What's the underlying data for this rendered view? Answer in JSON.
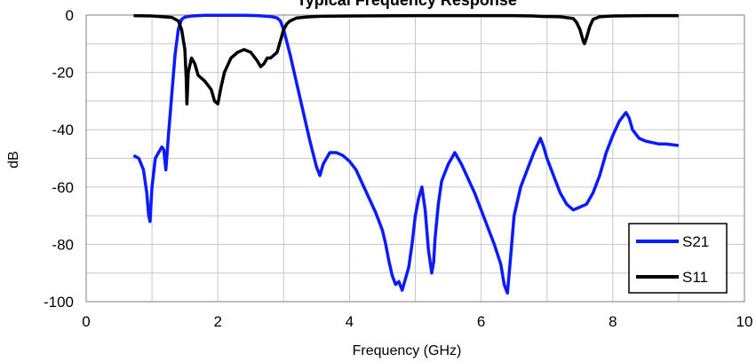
{
  "chart_data": {
    "type": "line",
    "title": "Typical Frequency Response",
    "xlabel": "Frequency (GHz)",
    "ylabel": "dB",
    "xlim": [
      0,
      10
    ],
    "ylim": [
      -100,
      0
    ],
    "x_ticks": [
      "0",
      "2",
      "4",
      "6",
      "8",
      "10"
    ],
    "y_ticks": [
      "0",
      "-20",
      "-40",
      "-60",
      "-80",
      "-100"
    ],
    "grid": true,
    "legend_position": "bottom-right",
    "series": [
      {
        "name": "S21",
        "color": "#0a1cff",
        "x": [
          0.72,
          0.8,
          0.87,
          0.92,
          0.95,
          0.97,
          1.0,
          1.05,
          1.1,
          1.15,
          1.18,
          1.21,
          1.25,
          1.3,
          1.35,
          1.4,
          1.45,
          1.5,
          1.55,
          1.6,
          1.7,
          1.8,
          2.0,
          2.2,
          2.4,
          2.6,
          2.8,
          2.9,
          2.95,
          3.0,
          3.1,
          3.2,
          3.3,
          3.4,
          3.5,
          3.55,
          3.6,
          3.7,
          3.8,
          3.9,
          4.0,
          4.1,
          4.2,
          4.3,
          4.4,
          4.5,
          4.55,
          4.6,
          4.65,
          4.7,
          4.75,
          4.8,
          4.85,
          4.9,
          4.95,
          5.0,
          5.05,
          5.1,
          5.15,
          5.2,
          5.25,
          5.28,
          5.3,
          5.35,
          5.4,
          5.5,
          5.6,
          5.7,
          5.8,
          5.9,
          6.0,
          6.1,
          6.2,
          6.3,
          6.35,
          6.4,
          6.45,
          6.5,
          6.6,
          6.7,
          6.8,
          6.9,
          6.95,
          7.0,
          7.1,
          7.2,
          7.3,
          7.4,
          7.5,
          7.6,
          7.7,
          7.8,
          7.9,
          8.0,
          8.1,
          8.2,
          8.25,
          8.3,
          8.4,
          8.5,
          8.6,
          8.7,
          8.8,
          9.0
        ],
        "values": [
          -49,
          -50,
          -54,
          -62,
          -70,
          -72,
          -60,
          -50,
          -48,
          -46,
          -47,
          -54,
          -42,
          -28,
          -14,
          -5,
          -1.5,
          -0.7,
          -0.5,
          -0.3,
          -0.2,
          -0.1,
          -0.1,
          -0.1,
          -0.1,
          -0.2,
          -0.5,
          -1.0,
          -2.0,
          -5,
          -14,
          -24,
          -34,
          -44,
          -53,
          -56,
          -52,
          -48,
          -48,
          -49,
          -51,
          -54,
          -59,
          -64,
          -69,
          -75,
          -80,
          -86,
          -91,
          -94,
          -93,
          -96,
          -92,
          -88,
          -80,
          -70,
          -64,
          -60,
          -68,
          -82,
          -90,
          -86,
          -78,
          -66,
          -58,
          -52,
          -48,
          -52,
          -57,
          -62,
          -68,
          -74,
          -80,
          -87,
          -94,
          -97,
          -84,
          -70,
          -60,
          -54,
          -48,
          -43,
          -46,
          -50,
          -56,
          -62,
          -66,
          -68,
          -67,
          -66,
          -62,
          -56,
          -48,
          -42,
          -37,
          -34,
          -36,
          -40,
          -43,
          -44,
          -44.5,
          -45,
          -45,
          -45.5
        ]
      },
      {
        "name": "S11",
        "color": "#000000",
        "x": [
          0.72,
          1.0,
          1.3,
          1.4,
          1.45,
          1.5,
          1.52,
          1.53,
          1.55,
          1.6,
          1.65,
          1.7,
          1.8,
          1.9,
          1.95,
          2.0,
          2.05,
          2.1,
          2.2,
          2.3,
          2.4,
          2.5,
          2.6,
          2.65,
          2.7,
          2.75,
          2.8,
          2.85,
          2.9,
          2.95,
          3.0,
          3.05,
          3.1,
          3.2,
          3.4,
          3.6,
          4.0,
          5.0,
          6.0,
          6.5,
          6.8,
          6.95,
          7.0,
          7.2,
          7.4,
          7.45,
          7.5,
          7.55,
          7.57,
          7.6,
          7.65,
          7.7,
          7.8,
          8.0,
          8.5,
          9.0
        ],
        "values": [
          -0.2,
          -0.3,
          -0.8,
          -2,
          -5,
          -12,
          -22,
          -31,
          -20,
          -15,
          -17,
          -21,
          -23,
          -26,
          -30,
          -31,
          -25,
          -20,
          -15,
          -13,
          -12,
          -13,
          -16,
          -18,
          -17,
          -15,
          -15,
          -14,
          -13,
          -9,
          -5,
          -3,
          -2,
          -1,
          -0.6,
          -0.4,
          -0.3,
          -0.2,
          -0.2,
          -0.2,
          -0.3,
          -0.5,
          -0.5,
          -0.6,
          -1.2,
          -2.5,
          -5,
          -9,
          -10,
          -8,
          -4,
          -1.5,
          -0.6,
          -0.3,
          -0.2,
          -0.2
        ]
      }
    ]
  }
}
